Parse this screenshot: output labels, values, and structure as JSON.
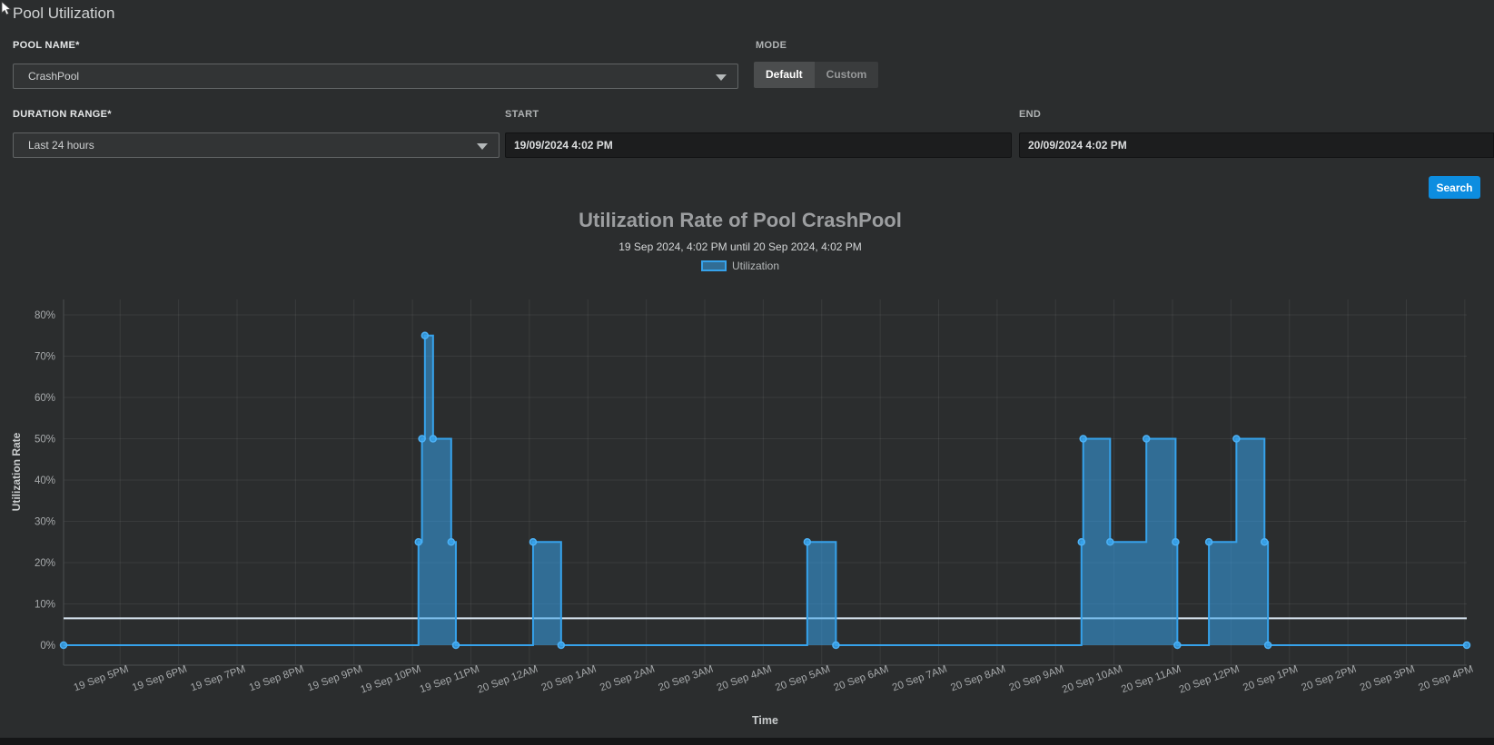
{
  "page": {
    "title": "Pool Utilization"
  },
  "form": {
    "pool_name": {
      "label": "POOL NAME*",
      "value": "CrashPool"
    },
    "mode": {
      "label": "MODE",
      "options": [
        "Default",
        "Custom"
      ],
      "selected": "Default"
    },
    "duration": {
      "label": "DURATION RANGE*",
      "value": "Last 24 hours"
    },
    "start": {
      "label": "START",
      "value": "19/09/2024 4:02 PM"
    },
    "end": {
      "label": "END",
      "value": "20/09/2024 4:02 PM"
    },
    "search_label": "Search"
  },
  "chart_data": {
    "type": "area-step",
    "title": "Utilization Rate of Pool CrashPool",
    "subtitle": "19 Sep 2024, 4:02 PM until 20 Sep 2024, 4:02 PM",
    "xlabel": "Time",
    "ylabel": "Utilization Rate",
    "ylim": [
      0,
      80
    ],
    "y_tick_step": 10,
    "y_tick_suffix": "%",
    "grid": true,
    "legend_position": "top",
    "x_start": "19 Sep 2024 4:02 PM",
    "x_end": "20 Sep 2024 4:02 PM",
    "x_range_hours": 24,
    "x_first_tick_offset_hours": 0.967,
    "x_ticks": [
      "19 Sep 5PM",
      "19 Sep 6PM",
      "19 Sep 7PM",
      "19 Sep 8PM",
      "19 Sep 9PM",
      "19 Sep 10PM",
      "19 Sep 11PM",
      "20 Sep 12AM",
      "20 Sep 1AM",
      "20 Sep 2AM",
      "20 Sep 3AM",
      "20 Sep 4AM",
      "20 Sep 5AM",
      "20 Sep 6AM",
      "20 Sep 7AM",
      "20 Sep 8AM",
      "20 Sep 9AM",
      "20 Sep 10AM",
      "20 Sep 11AM",
      "20 Sep 12PM",
      "20 Sep 1PM",
      "20 Sep 2PM",
      "20 Sep 3PM",
      "20 Sep 4PM"
    ],
    "series": [
      {
        "name": "Utilization",
        "color": "#36a2eb",
        "fill": "rgba(54,162,235,0.55)",
        "step": "after",
        "points_unit": [
          "hours_since_start",
          "percent"
        ],
        "points": [
          [
            0,
            0
          ],
          [
            6.07,
            25
          ],
          [
            6.13,
            50
          ],
          [
            6.18,
            75
          ],
          [
            6.32,
            50
          ],
          [
            6.63,
            25
          ],
          [
            6.71,
            0
          ],
          [
            8.03,
            25
          ],
          [
            8.51,
            0
          ],
          [
            12.72,
            25
          ],
          [
            13.21,
            0
          ],
          [
            17.41,
            25
          ],
          [
            17.44,
            50
          ],
          [
            17.9,
            25
          ],
          [
            18.52,
            50
          ],
          [
            19.02,
            25
          ],
          [
            19.05,
            0
          ],
          [
            19.59,
            25
          ],
          [
            20.06,
            50
          ],
          [
            20.54,
            25
          ],
          [
            20.6,
            0
          ],
          [
            24,
            0
          ]
        ]
      }
    ],
    "threshold_line": {
      "value": 6.5,
      "color": "#d9e6f2"
    }
  }
}
